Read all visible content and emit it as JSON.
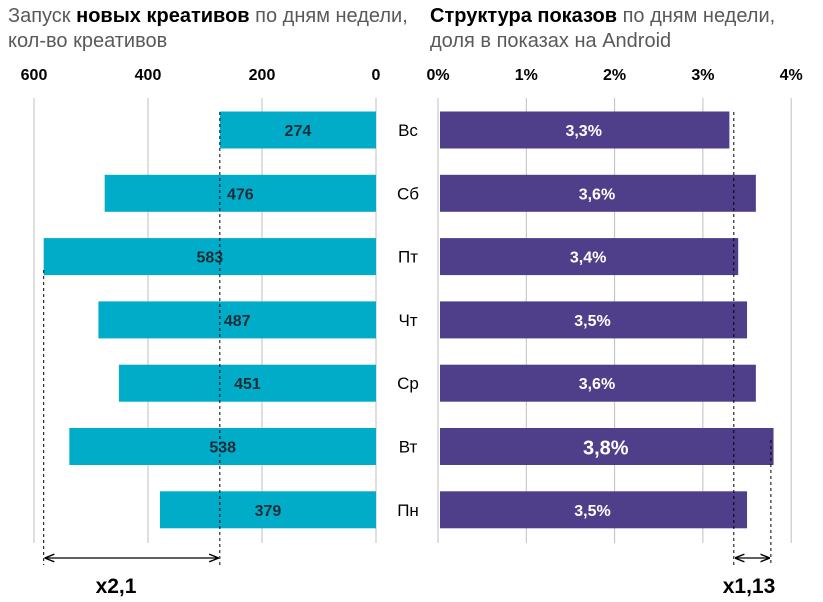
{
  "colors": {
    "left_bar": "#00acc8",
    "right_bar": "#4f3f8a",
    "grid": "#bfbfbf",
    "text_dark": "#000000",
    "text_muted": "#595959"
  },
  "chart_data": [
    {
      "type": "bar",
      "orientation": "horizontal",
      "direction": "right-to-left",
      "title_prefix": "Запуск ",
      "title_bold": "новых креативов",
      "title_suffix": " по дням недели,",
      "subtitle": "кол-во креативов",
      "categories": [
        "Вс",
        "Сб",
        "Пт",
        "Чт",
        "Ср",
        "Вт",
        "Пн"
      ],
      "values": [
        274,
        476,
        583,
        487,
        451,
        538,
        379
      ],
      "value_labels": [
        "274",
        "476",
        "583",
        "487",
        "451",
        "538",
        "379"
      ],
      "xlim": [
        0,
        600
      ],
      "ticks": [
        600,
        400,
        200,
        0
      ],
      "tick_labels": [
        "600",
        "400",
        "200",
        "0"
      ],
      "annotation": {
        "text": "x2,1",
        "from_value": 583,
        "to_value": 274
      }
    },
    {
      "type": "bar",
      "orientation": "horizontal",
      "direction": "left-to-right",
      "title_bold": "Структура показов",
      "title_suffix": " по дням недели,",
      "subtitle": "доля в показах на Android",
      "categories": [
        "Вс",
        "Сб",
        "Пт",
        "Чт",
        "Ср",
        "Вт",
        "Пн"
      ],
      "values": [
        3.3,
        3.6,
        3.4,
        3.5,
        3.6,
        3.8,
        3.5
      ],
      "value_labels": [
        "3,3%",
        "3,6%",
        "3,4%",
        "3,5%",
        "3,6%",
        "3,8%",
        "3,5%"
      ],
      "xlim": [
        0,
        4
      ],
      "ticks": [
        0,
        1,
        2,
        3,
        4
      ],
      "tick_labels": [
        "0%",
        "1%",
        "2%",
        "3%",
        "4%"
      ],
      "annotation": {
        "text": "x1,13",
        "from_value": 3.35,
        "to_value": 3.77
      }
    }
  ]
}
